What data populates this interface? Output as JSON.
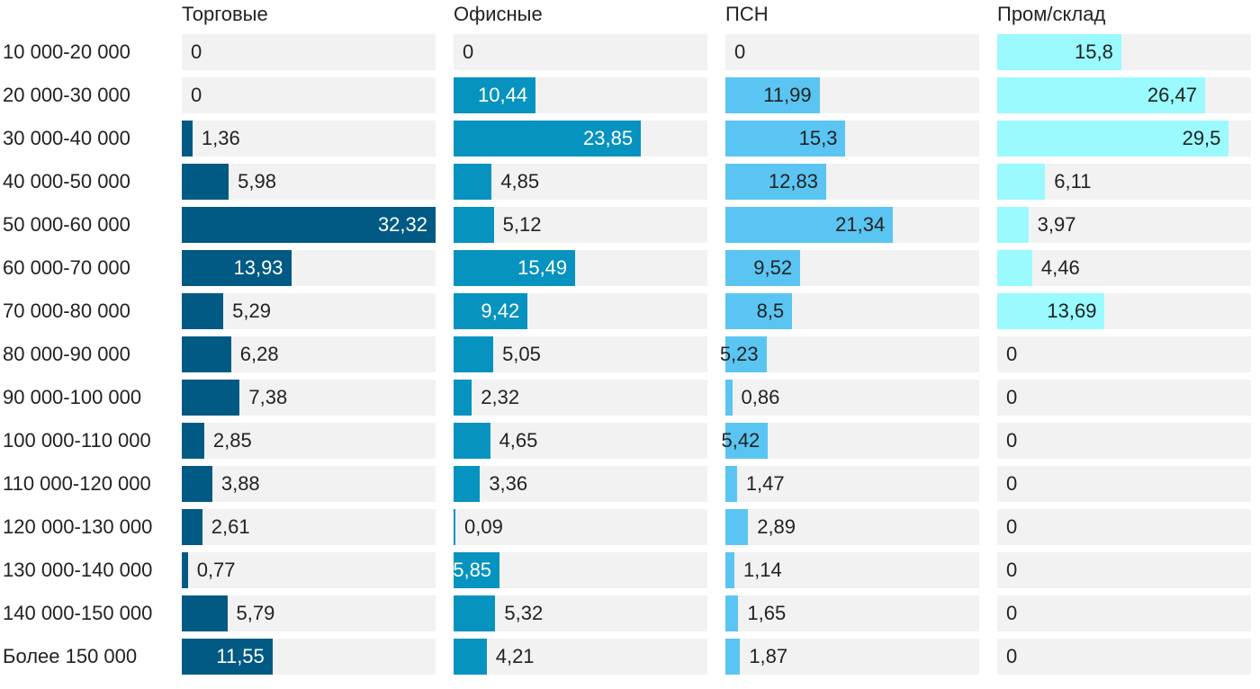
{
  "chart_data": {
    "type": "bar",
    "orientation": "horizontal",
    "layout": "small-multiples",
    "categories": [
      "10 000-20 000",
      "20 000-30 000",
      "30 000-40 000",
      "40 000-50 000",
      "50 000-60 000",
      "60 000-70 000",
      "70 000-80 000",
      "80 000-90 000",
      "90 000-100 000",
      "100 000-110 000",
      "110 000-120 000",
      "120 000-130 000",
      "130 000-140 000",
      "140 000-150 000",
      "Более 150 000"
    ],
    "series": [
      {
        "name": "Торговые",
        "color": "#005a83",
        "label_color": "#ffffff",
        "values": [
          0,
          0,
          1.36,
          5.98,
          32.32,
          13.93,
          5.29,
          6.28,
          7.38,
          2.85,
          3.88,
          2.61,
          0.77,
          5.79,
          11.55
        ],
        "labels": [
          "0",
          "0",
          "1,36",
          "5,98",
          "32,32",
          "13,93",
          "5,29",
          "6,28",
          "7,38",
          "2,85",
          "3,88",
          "2,61",
          "0,77",
          "5,79",
          "11,55"
        ],
        "label_inside": [
          false,
          false,
          false,
          false,
          true,
          true,
          false,
          false,
          false,
          false,
          false,
          false,
          false,
          false,
          true
        ]
      },
      {
        "name": "Офисные",
        "color": "#0793bf",
        "label_color": "#ffffff",
        "values": [
          0,
          10.44,
          23.85,
          4.85,
          5.12,
          15.49,
          9.42,
          5.05,
          2.32,
          4.65,
          3.36,
          0.09,
          5.85,
          5.32,
          4.21
        ],
        "labels": [
          "0",
          "10,44",
          "23,85",
          "4,85",
          "5,12",
          "15,49",
          "9,42",
          "5,05",
          "2,32",
          "4,65",
          "3,36",
          "0,09",
          "5,85",
          "5,32",
          "4,21"
        ],
        "label_inside": [
          false,
          true,
          true,
          false,
          false,
          true,
          true,
          false,
          false,
          false,
          false,
          false,
          true,
          false,
          false
        ]
      },
      {
        "name": "ПСН",
        "color": "#5ac5f2",
        "label_color": "#222222",
        "values": [
          0,
          11.99,
          15.3,
          12.83,
          21.34,
          9.52,
          8.5,
          5.23,
          0.86,
          5.42,
          1.47,
          2.89,
          1.14,
          1.65,
          1.87
        ],
        "labels": [
          "0",
          "11,99",
          "15,3",
          "12,83",
          "21,34",
          "9,52",
          "8,5",
          "5,23",
          "0,86",
          "5,42",
          "1,47",
          "2,89",
          "1,14",
          "1,65",
          "1,87"
        ],
        "label_inside": [
          false,
          true,
          true,
          true,
          true,
          true,
          true,
          true,
          false,
          true,
          false,
          false,
          false,
          false,
          false
        ]
      },
      {
        "name": "Пром/склад",
        "color": "#9afafd",
        "label_color": "#222222",
        "values": [
          15.8,
          26.47,
          29.5,
          6.11,
          3.97,
          4.46,
          13.69,
          0,
          0,
          0,
          0,
          0,
          0,
          0,
          0
        ],
        "labels": [
          "15,8",
          "26,47",
          "29,5",
          "6,11",
          "3,97",
          "4,46",
          "13,69",
          "0",
          "0",
          "0",
          "0",
          "0",
          "0",
          "0",
          "0"
        ],
        "label_inside": [
          true,
          true,
          true,
          false,
          false,
          false,
          true,
          false,
          false,
          false,
          false,
          false,
          false,
          false,
          false
        ]
      }
    ],
    "background_color": "#f2f2f2",
    "grid": false,
    "legend": "none"
  }
}
